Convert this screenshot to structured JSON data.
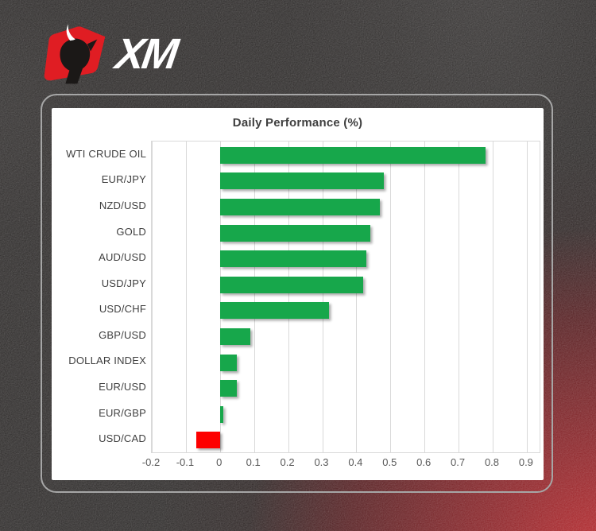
{
  "logo": {
    "brand": "XM",
    "mark": "bull-icon",
    "bull_color": "#e01d23",
    "text_color": "#ffffff"
  },
  "card": {
    "frame_color": "#a6a6a6",
    "panel_color": "#ffffff"
  },
  "chart_data": {
    "type": "bar",
    "orientation": "horizontal",
    "title": "Daily Performance (%)",
    "categories": [
      "WTI CRUDE OIL",
      "EUR/JPY",
      "NZD/USD",
      "GOLD",
      "AUD/USD",
      "USD/JPY",
      "USD/CHF",
      "GBP/USD",
      "DOLLAR INDEX",
      "EUR/USD",
      "EUR/GBP",
      "USD/CAD"
    ],
    "values": [
      0.78,
      0.48,
      0.47,
      0.44,
      0.43,
      0.42,
      0.32,
      0.09,
      0.05,
      0.05,
      0.01,
      -0.07
    ],
    "xlim": [
      -0.2,
      0.9
    ],
    "x_ticks": [
      -0.2,
      -0.1,
      0,
      0.1,
      0.2,
      0.3,
      0.4,
      0.5,
      0.6,
      0.7,
      0.8,
      0.9
    ],
    "tick_labels": [
      "-0.2",
      "-0.1",
      "0",
      "0.1",
      "0.2",
      "0.3",
      "0.4",
      "0.5",
      "0.6",
      "0.7",
      "0.8",
      "0.9"
    ],
    "grid": true,
    "legend": "none",
    "positive_color": "#17a74b",
    "negative_color": "#fd0000",
    "grid_color": "#d9d9d9",
    "title_color": "#3f3f3f",
    "category_label_color": "#3f3f3f",
    "tick_label_color": "#595959"
  }
}
